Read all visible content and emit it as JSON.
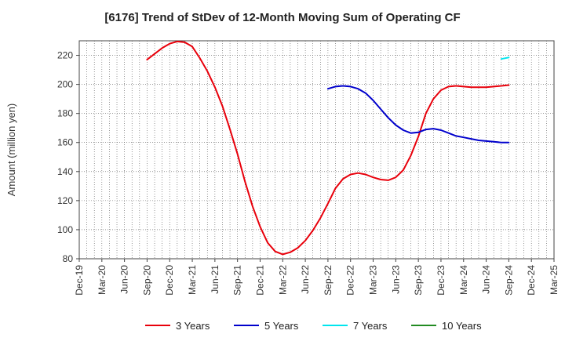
{
  "chart_data": {
    "type": "line",
    "title": "[6176]  Trend of StDev of 12-Month Moving Sum of Operating CF",
    "xlabel": "",
    "ylabel": "Amount (million yen)",
    "ylim": [
      80,
      230
    ],
    "yticks": [
      80,
      100,
      120,
      140,
      160,
      180,
      200,
      220
    ],
    "xlim": [
      "2019-12",
      "2025-03"
    ],
    "xticks": [
      "Dec-19",
      "Mar-20",
      "Jun-20",
      "Sep-20",
      "Dec-20",
      "Mar-21",
      "Jun-21",
      "Sep-21",
      "Dec-21",
      "Mar-22",
      "Jun-22",
      "Sep-22",
      "Dec-22",
      "Mar-23",
      "Jun-23",
      "Sep-23",
      "Dec-23",
      "Mar-24",
      "Jun-24",
      "Sep-24",
      "Dec-24",
      "Mar-25"
    ],
    "grid": true,
    "legend_position": "bottom",
    "series": [
      {
        "name": "3 Years",
        "color": "#e8000b",
        "points": [
          [
            "2020-09",
            217
          ],
          [
            "2020-10",
            221
          ],
          [
            "2020-11",
            225
          ],
          [
            "2020-12",
            228
          ],
          [
            "2021-01",
            229.5
          ],
          [
            "2021-02",
            229
          ],
          [
            "2021-03",
            226
          ],
          [
            "2021-04",
            218
          ],
          [
            "2021-05",
            209
          ],
          [
            "2021-06",
            198
          ],
          [
            "2021-07",
            185
          ],
          [
            "2021-08",
            169
          ],
          [
            "2021-09",
            152
          ],
          [
            "2021-10",
            133
          ],
          [
            "2021-11",
            116
          ],
          [
            "2021-12",
            102
          ],
          [
            "2022-01",
            91
          ],
          [
            "2022-02",
            85
          ],
          [
            "2022-03",
            83
          ],
          [
            "2022-04",
            84.5
          ],
          [
            "2022-05",
            87.5
          ],
          [
            "2022-06",
            92.5
          ],
          [
            "2022-07",
            99.5
          ],
          [
            "2022-08",
            108
          ],
          [
            "2022-09",
            118
          ],
          [
            "2022-10",
            128.5
          ],
          [
            "2022-11",
            135
          ],
          [
            "2022-12",
            138
          ],
          [
            "2023-01",
            139
          ],
          [
            "2023-02",
            138
          ],
          [
            "2023-03",
            136
          ],
          [
            "2023-04",
            134.5
          ],
          [
            "2023-05",
            134
          ],
          [
            "2023-06",
            136
          ],
          [
            "2023-07",
            141
          ],
          [
            "2023-08",
            151
          ],
          [
            "2023-09",
            164
          ],
          [
            "2023-10",
            180
          ],
          [
            "2023-11",
            190
          ],
          [
            "2023-12",
            196
          ],
          [
            "2024-01",
            198.5
          ],
          [
            "2024-02",
            199
          ],
          [
            "2024-03",
            198.5
          ],
          [
            "2024-04",
            198
          ],
          [
            "2024-05",
            198
          ],
          [
            "2024-06",
            198
          ],
          [
            "2024-07",
            198.5
          ],
          [
            "2024-08",
            199
          ],
          [
            "2024-09",
            199.5
          ]
        ]
      },
      {
        "name": "5 Years",
        "color": "#0000cc",
        "points": [
          [
            "2022-09",
            197
          ],
          [
            "2022-10",
            198.5
          ],
          [
            "2022-11",
            199
          ],
          [
            "2022-12",
            198.5
          ],
          [
            "2023-01",
            197
          ],
          [
            "2023-02",
            194
          ],
          [
            "2023-03",
            189
          ],
          [
            "2023-04",
            183
          ],
          [
            "2023-05",
            177
          ],
          [
            "2023-06",
            172
          ],
          [
            "2023-07",
            168.5
          ],
          [
            "2023-08",
            166.5
          ],
          [
            "2023-09",
            167
          ],
          [
            "2023-10",
            169
          ],
          [
            "2023-11",
            169.5
          ],
          [
            "2023-12",
            168.5
          ],
          [
            "2024-01",
            166.5
          ],
          [
            "2024-02",
            164.5
          ],
          [
            "2024-03",
            163.5
          ],
          [
            "2024-04",
            162.5
          ],
          [
            "2024-05",
            161.5
          ],
          [
            "2024-06",
            161
          ],
          [
            "2024-07",
            160.5
          ],
          [
            "2024-08",
            160
          ],
          [
            "2024-09",
            160
          ]
        ]
      },
      {
        "name": "7 Years",
        "color": "#00e5ee",
        "points": [
          [
            "2024-08",
            217.5
          ],
          [
            "2024-09",
            218.5
          ]
        ]
      },
      {
        "name": "10 Years",
        "color": "#228b22",
        "points": []
      }
    ]
  }
}
